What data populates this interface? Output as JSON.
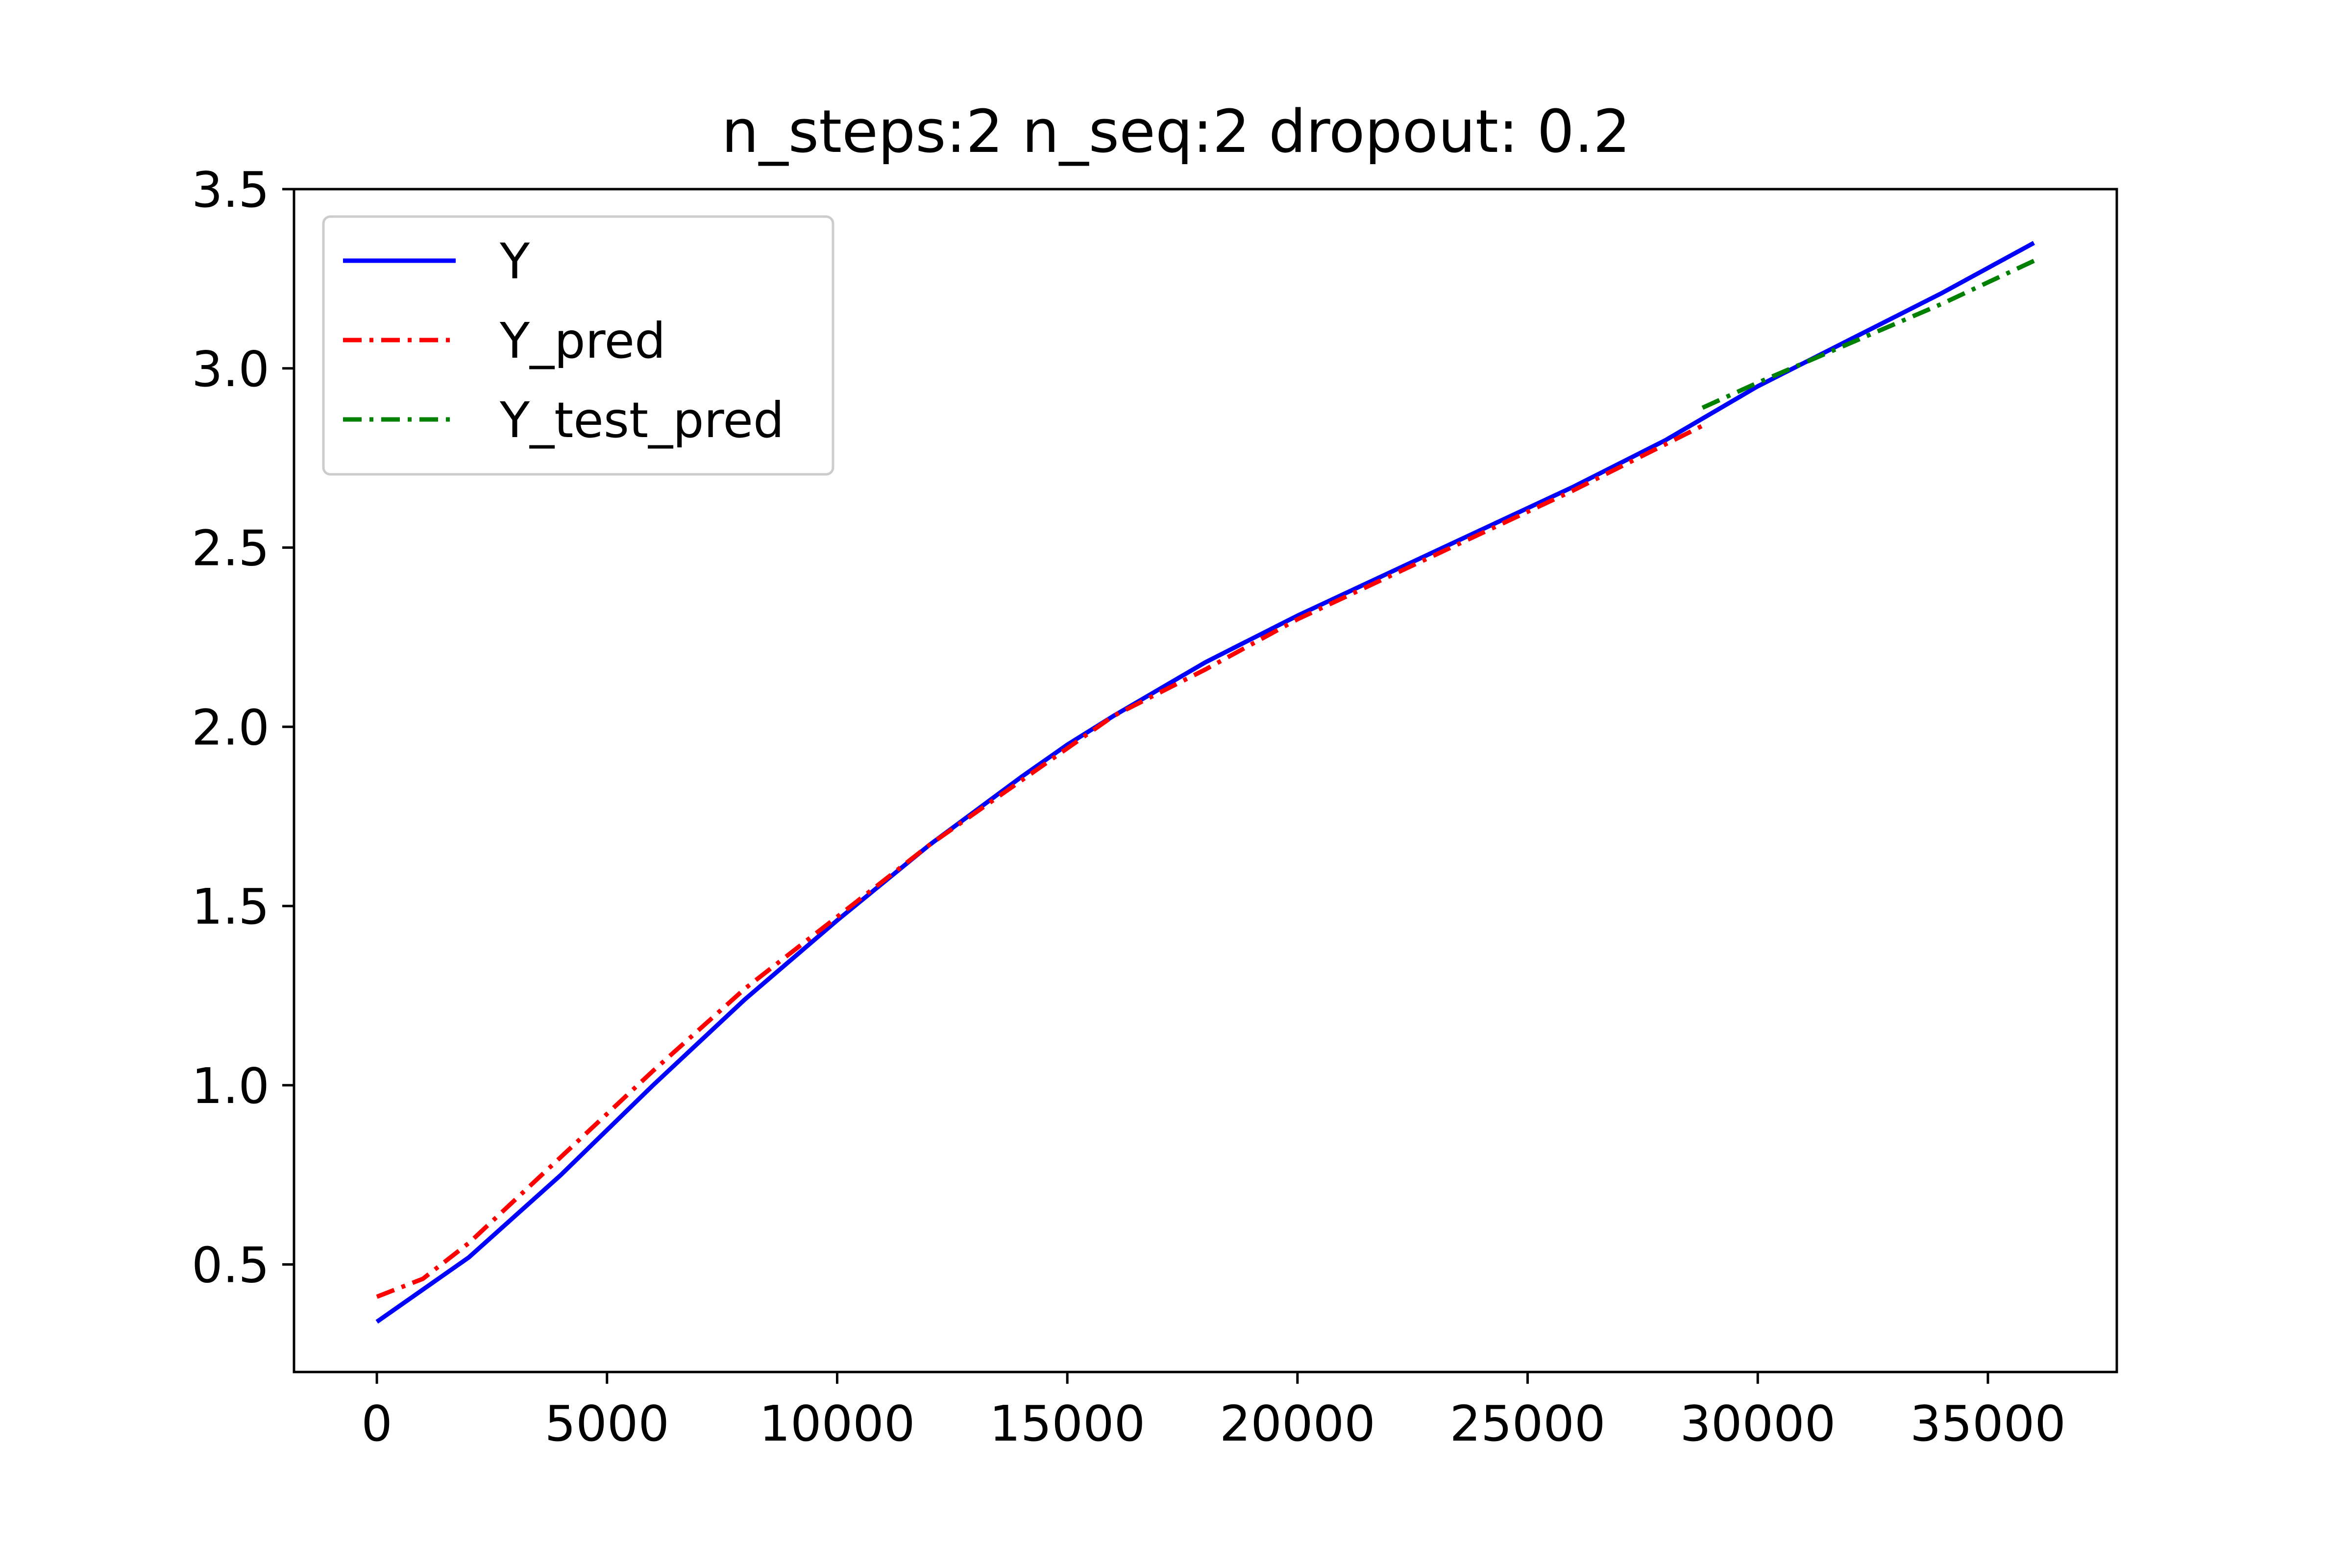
{
  "chart_data": {
    "type": "line",
    "title": "n_steps:2 n_seq:2 dropout: 0.2",
    "xlabel": "",
    "ylabel": "",
    "xlim": [
      -1800,
      37800
    ],
    "ylim": [
      0.2,
      3.5
    ],
    "x_ticks": [
      0,
      5000,
      10000,
      15000,
      20000,
      25000,
      30000,
      35000
    ],
    "y_ticks": [
      0.5,
      1.0,
      1.5,
      2.0,
      2.5,
      3.0,
      3.5
    ],
    "x_tick_labels": [
      "0",
      "5000",
      "10000",
      "15000",
      "20000",
      "25000",
      "30000",
      "35000"
    ],
    "y_tick_labels": [
      "0.5",
      "1.0",
      "1.5",
      "2.0",
      "2.5",
      "3.0",
      "3.5"
    ],
    "grid": false,
    "legend_position": "upper-left",
    "series": [
      {
        "name": "Y",
        "color": "#0000ff",
        "style": "solid",
        "x": [
          0,
          2000,
          4000,
          6000,
          8000,
          10000,
          12000,
          14000,
          15000,
          16000,
          18000,
          20000,
          22000,
          24000,
          26000,
          28000,
          30000,
          32000,
          34000,
          36000
        ],
        "y": [
          0.34,
          0.52,
          0.75,
          1.0,
          1.24,
          1.46,
          1.67,
          1.86,
          1.95,
          2.03,
          2.18,
          2.31,
          2.43,
          2.55,
          2.67,
          2.8,
          2.95,
          3.08,
          3.21,
          3.35
        ]
      },
      {
        "name": "Y_pred",
        "color": "#ff0000",
        "style": "dashdot",
        "x": [
          0,
          1000,
          2000,
          4000,
          6000,
          8000,
          10000,
          12000,
          14000,
          16000,
          18000,
          20000,
          22000,
          24000,
          26000,
          28800
        ],
        "y": [
          0.41,
          0.46,
          0.56,
          0.8,
          1.04,
          1.27,
          1.47,
          1.67,
          1.85,
          2.03,
          2.16,
          2.3,
          2.42,
          2.54,
          2.66,
          2.84
        ]
      },
      {
        "name": "Y_test_pred",
        "color": "#008000",
        "style": "dashdot",
        "x": [
          28800,
          30000,
          32000,
          34000,
          36000
        ],
        "y": [
          2.89,
          2.96,
          3.07,
          3.18,
          3.3
        ]
      }
    ]
  }
}
